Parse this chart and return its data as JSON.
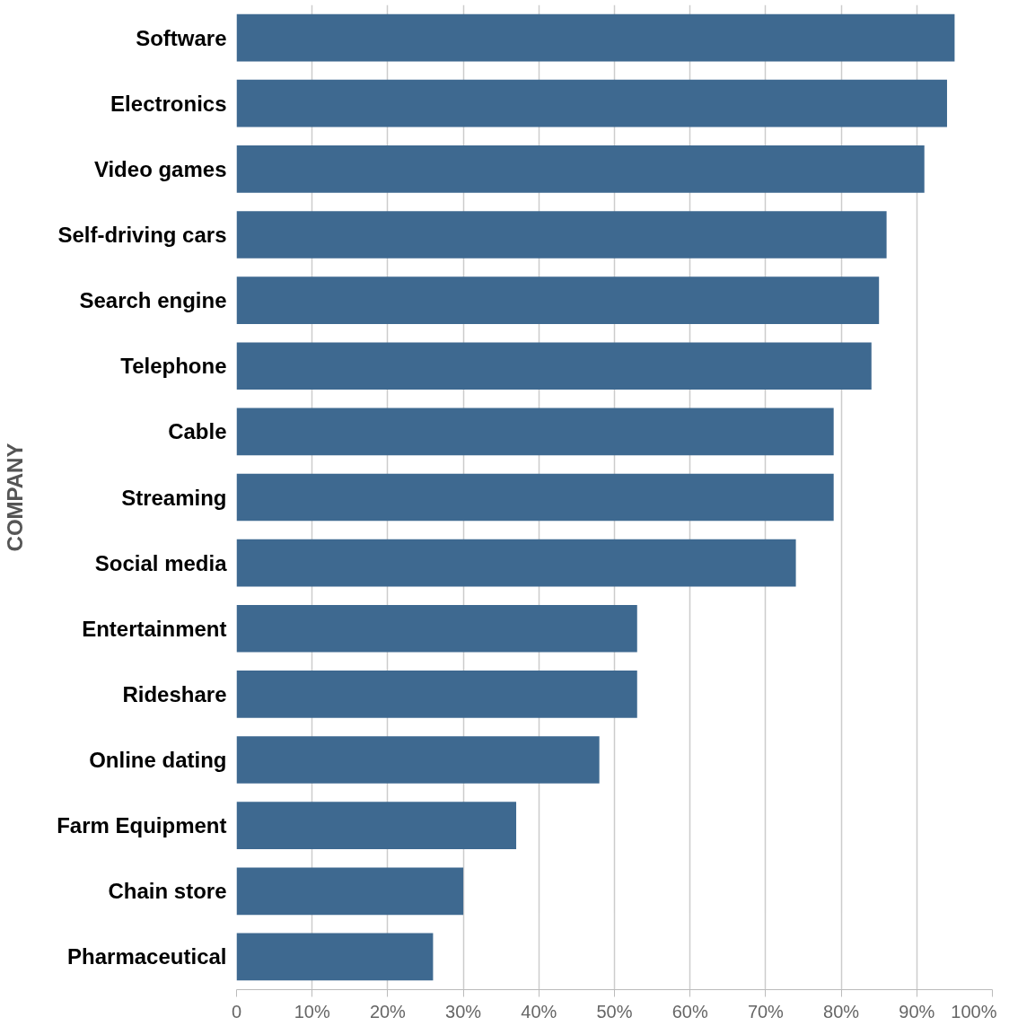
{
  "chart_data": {
    "type": "bar",
    "orientation": "horizontal",
    "ylabel": "COMPANY",
    "categories": [
      "Software",
      "Electronics",
      "Video games",
      "Self-driving cars",
      "Search engine",
      "Telephone",
      "Cable",
      "Streaming",
      "Social media",
      "Entertainment",
      "Rideshare",
      "Online dating",
      "Farm Equipment",
      "Chain store",
      "Pharmaceutical"
    ],
    "values": [
      95,
      94,
      91,
      86,
      85,
      84,
      79,
      79,
      74,
      53,
      53,
      48,
      37,
      30,
      26
    ],
    "color": "#3e6990",
    "xlim": [
      0,
      100
    ],
    "xticks": [
      0,
      {
        "value": 10,
        "label": "10%"
      },
      {
        "value": 20,
        "label": "20%"
      },
      {
        "value": 30,
        "label": "30%"
      },
      {
        "value": 40,
        "label": "40%"
      },
      {
        "value": 50,
        "label": "50%"
      },
      {
        "value": 60,
        "label": "60%"
      },
      {
        "value": 70,
        "label": "70%"
      },
      {
        "value": 80,
        "label": "80%"
      },
      {
        "value": 90,
        "label": "90%"
      },
      {
        "value": 100,
        "label": "100%"
      }
    ],
    "grid": "x"
  }
}
